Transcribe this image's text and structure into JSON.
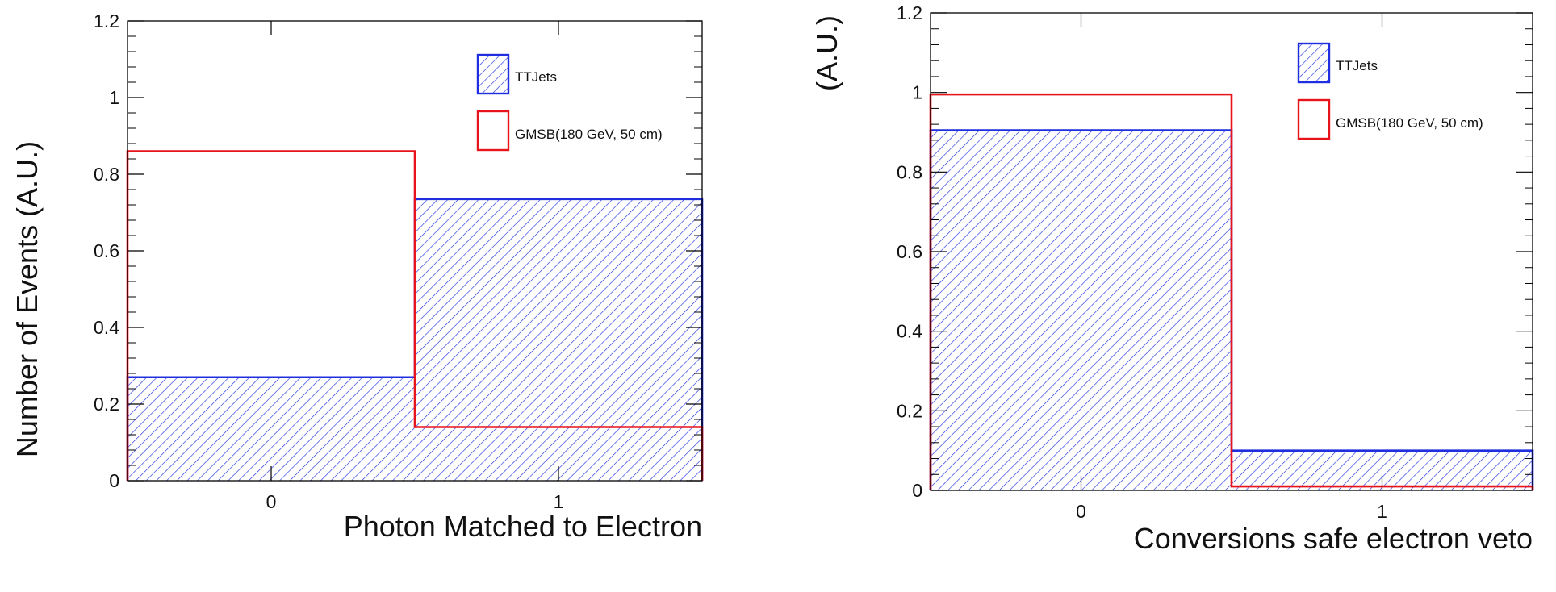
{
  "chart_data": [
    {
      "type": "bar",
      "style": "histogram",
      "categories": [
        "0",
        "1"
      ],
      "x_ticks": [
        "0",
        "1"
      ],
      "xlabel": "Photon Matched to Electron",
      "ylabel": "Number of Events (A.U.)",
      "ylim": [
        0,
        1.2
      ],
      "y_ticks": [
        "0",
        "0.2",
        "0.4",
        "0.6",
        "0.8",
        "1",
        "1.2"
      ],
      "grid": false,
      "legend_position": "top-right",
      "series": [
        {
          "name": "TTJets",
          "values": [
            0.27,
            0.735
          ],
          "color": "#1f2fe0",
          "fill": "hatched"
        },
        {
          "name": "GMSB(180 GeV, 50 cm)",
          "values": [
            0.86,
            0.14
          ],
          "color": "#e8141b",
          "fill": "none"
        }
      ]
    },
    {
      "type": "bar",
      "style": "histogram",
      "categories": [
        "0",
        "1"
      ],
      "x_ticks": [
        "0",
        "1"
      ],
      "xlabel": "Conversions safe electron veto",
      "ylabel": "(A.U.)",
      "ylim": [
        0,
        1.2
      ],
      "y_ticks": [
        "0",
        "0.2",
        "0.4",
        "0.6",
        "0.8",
        "1",
        "1.2"
      ],
      "grid": false,
      "legend_position": "top-right",
      "series": [
        {
          "name": "TTJets",
          "values": [
            0.905,
            0.1
          ],
          "color": "#1f2fe0",
          "fill": "hatched"
        },
        {
          "name": "GMSB(180 GeV, 50 cm)",
          "values": [
            0.995,
            0.01
          ],
          "color": "#e8141b",
          "fill": "none"
        }
      ]
    }
  ]
}
